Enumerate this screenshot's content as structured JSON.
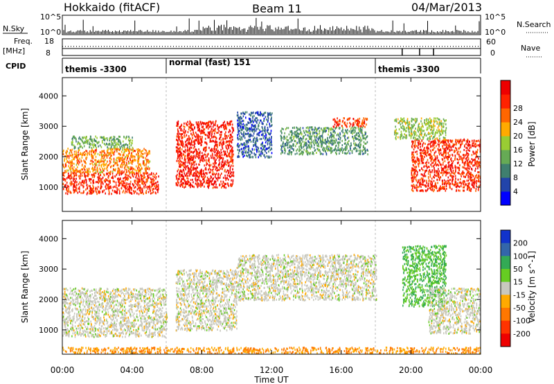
{
  "header": {
    "station": "Hokkaido (fitACF)",
    "beam": "Beam 11",
    "date": "04/Mar/2013"
  },
  "status_panels": {
    "nsky_label": "N.Sky",
    "nsky_ticks": [
      "10^5",
      "10^0"
    ],
    "nsearch_label": "N.Search",
    "nsearch_ticks": [
      "10^5",
      "10^0"
    ],
    "freq_label_1": "Freq.",
    "freq_label_2": "[MHz]",
    "freq_ticks": [
      "18",
      "8"
    ],
    "nave_label": "Nave",
    "nave_ticks": [
      "60",
      "0"
    ],
    "cpid_label": "CPID",
    "cpid_segments": [
      {
        "label": "themis -3300",
        "start_h": 0,
        "end_h": 6
      },
      {
        "label": "normal (fast) 151",
        "start_h": 6,
        "end_h": 18
      },
      {
        "label": "themis -3300",
        "start_h": 18,
        "end_h": 24
      }
    ]
  },
  "chart_data": [
    {
      "type": "heatmap",
      "panel": "power",
      "ylabel": "Slant Range [km]",
      "yticks": [
        1000,
        2000,
        3000,
        4000
      ],
      "ylim": [
        200,
        4600
      ],
      "xlim": [
        0,
        24
      ],
      "colorbar_label": "Power [dB]",
      "colorbar_ticks": [
        4,
        8,
        12,
        16,
        20,
        24,
        28
      ],
      "colorbar_colors": [
        "#0000ff",
        "#2244aa",
        "#3f7f6f",
        "#66aa55",
        "#99cc33",
        "#ffaa00",
        "#ff6600",
        "#ff2200",
        "#ee0000"
      ],
      "echo_regions": [
        {
          "from_h": 0.0,
          "to_h": 5.5,
          "range_km": [
            800,
            1500
          ],
          "power_db": 27
        },
        {
          "from_h": 0.0,
          "to_h": 5.0,
          "range_km": [
            1500,
            2300
          ],
          "power_db": 22
        },
        {
          "from_h": 0.5,
          "to_h": 4.0,
          "range_km": [
            2300,
            2700
          ],
          "power_db": 14
        },
        {
          "from_h": 6.5,
          "to_h": 9.8,
          "range_km": [
            1000,
            3200
          ],
          "power_db": 28
        },
        {
          "from_h": 10.0,
          "to_h": 12.0,
          "range_km": [
            2000,
            3500
          ],
          "power_db": 8
        },
        {
          "from_h": 12.5,
          "to_h": 17.5,
          "range_km": [
            2100,
            3000
          ],
          "power_db": 12
        },
        {
          "from_h": 15.5,
          "to_h": 17.5,
          "range_km": [
            3000,
            3300
          ],
          "power_db": 26
        },
        {
          "from_h": 20.0,
          "to_h": 24.0,
          "range_km": [
            900,
            2600
          ],
          "power_db": 27
        },
        {
          "from_h": 19.0,
          "to_h": 22.0,
          "range_km": [
            2600,
            3300
          ],
          "power_db": 16
        }
      ]
    },
    {
      "type": "heatmap",
      "panel": "velocity",
      "ylabel": "Slant Range [km]",
      "yticks": [
        1000,
        2000,
        3000,
        4000
      ],
      "ylim": [
        200,
        4600
      ],
      "xlim": [
        0,
        24
      ],
      "xlabel": "Time UT",
      "xticks": [
        "00:00",
        "04:00",
        "08:00",
        "12:00",
        "16:00",
        "20:00",
        "00:00"
      ],
      "colorbar_label": "Velocity [m s^-1]",
      "colorbar_ticks": [
        200,
        100,
        50,
        15,
        -15,
        -50,
        -100,
        -200
      ],
      "colorbar_colors": [
        "#1133cc",
        "#3366aa",
        "#33aa55",
        "#66cc22",
        "#c8c8be",
        "#ffaa00",
        "#ff7700",
        "#ff3300",
        "#ee0000"
      ],
      "echo_regions": [
        {
          "from_h": 0.0,
          "to_h": 6.0,
          "range_km": [
            800,
            2400
          ],
          "velocity_ms": 0
        },
        {
          "from_h": 6.5,
          "to_h": 10.0,
          "range_km": [
            1000,
            3000
          ],
          "velocity_ms": 0
        },
        {
          "from_h": 10.0,
          "to_h": 18.0,
          "range_km": [
            2000,
            3500
          ],
          "velocity_ms": 0
        },
        {
          "from_h": 19.5,
          "to_h": 22.0,
          "range_km": [
            1800,
            3800
          ],
          "velocity_ms": 50
        },
        {
          "from_h": 21.0,
          "to_h": 24.0,
          "range_km": [
            900,
            2400
          ],
          "velocity_ms": 0
        },
        {
          "from_h": 0.0,
          "to_h": 24.0,
          "range_km": [
            250,
            450
          ],
          "velocity_ms": -50
        }
      ]
    }
  ]
}
